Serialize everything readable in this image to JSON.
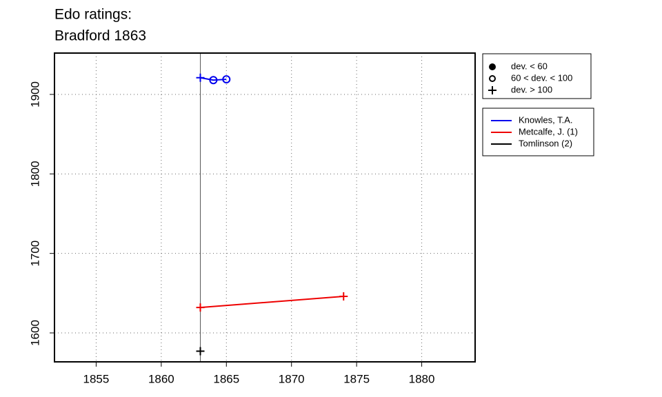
{
  "chart_data": {
    "type": "line",
    "title": [
      "Edo ratings:",
      "Bradford 1863"
    ],
    "xlim": [
      1851.8,
      1884.1
    ],
    "xticks": [
      1855,
      1860,
      1865,
      1870,
      1875,
      1880
    ],
    "ylim": [
      1563.6,
      1952
    ],
    "yticks": [
      1600,
      1700,
      1800,
      1900
    ],
    "grid": true,
    "vline": 1863,
    "marker_legend": [
      {
        "label": "dev. < 60",
        "marker": "dot"
      },
      {
        "label": "60 < dev. < 100",
        "marker": "circle"
      },
      {
        "label": "dev. > 100",
        "marker": "plus"
      }
    ],
    "series": [
      {
        "name": "Knowles, T.A.",
        "color": "#0000ee",
        "x": [
          1863,
          1864,
          1865
        ],
        "values": [
          1921,
          1918,
          1919
        ],
        "markers": [
          "plus",
          "circle",
          "circle"
        ]
      },
      {
        "name": "Metcalfe, J. (1)",
        "color": "#ee0000",
        "x": [
          1863,
          1874
        ],
        "values": [
          1632,
          1646
        ],
        "markers": [
          "plus",
          "plus"
        ]
      },
      {
        "name": "Tomlinson (2)",
        "color": "#000000",
        "x": [
          1863
        ],
        "values": [
          1577
        ],
        "markers": [
          "plus"
        ]
      }
    ]
  }
}
